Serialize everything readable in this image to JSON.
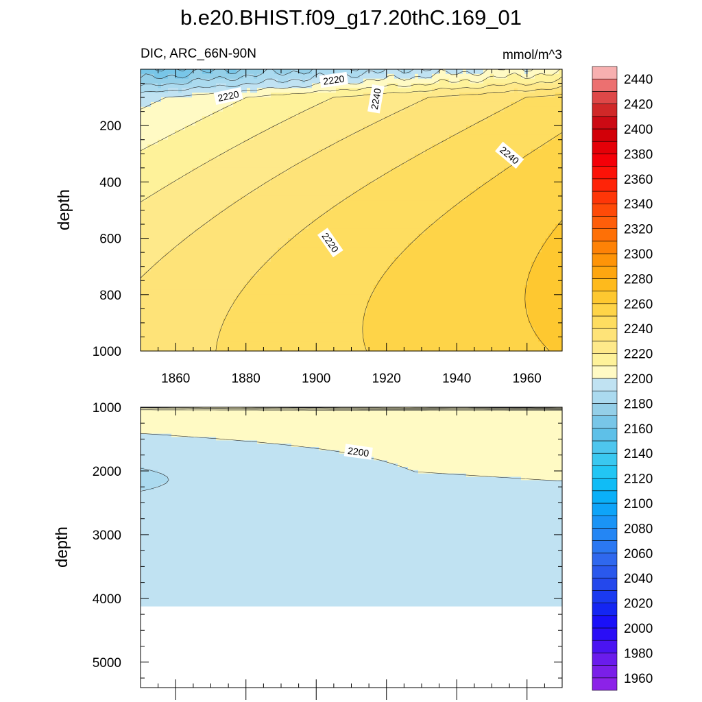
{
  "chart_data": {
    "type": "contour",
    "title": "b.e20.BHIST.f09_g17.20thC.169_01",
    "subtitle_left": "DIC, ARC_66N-90N",
    "subtitle_right": "mmol/m^3",
    "xlabel": "",
    "ylabel": "depth",
    "xlim": [
      1850,
      1970
    ],
    "x_ticks": [
      "1860",
      "1880",
      "1900",
      "1920",
      "1940",
      "1960"
    ],
    "colors": {
      "axis": "#000000",
      "contour_line": "#2a2a2a",
      "missing": "#ffffff"
    },
    "panels": [
      {
        "name": "upper",
        "ylim": [
          0,
          1000
        ],
        "y_ticks": [
          "200",
          "400",
          "600",
          "800",
          "1000"
        ],
        "y_tick_values": [
          200,
          400,
          600,
          800,
          1000
        ],
        "contour_labels": [
          {
            "text": "2220",
            "x": 1905,
            "y": 38,
            "angle": -8
          },
          {
            "text": "2220",
            "x": 1875,
            "y": 95,
            "angle": -12
          },
          {
            "text": "2240",
            "x": 1917,
            "y": 105,
            "angle": -80
          },
          {
            "text": "2240",
            "x": 1955,
            "y": 305,
            "angle": 40
          },
          {
            "text": "2220",
            "x": 1904,
            "y": 615,
            "angle": 55
          }
        ]
      },
      {
        "name": "lower",
        "ylim": [
          1000,
          5400
        ],
        "y_ticks": [
          "1000",
          "2000",
          "3000",
          "4000",
          "5000"
        ],
        "y_tick_values": [
          1000,
          2000,
          3000,
          4000,
          5000
        ],
        "bottom_data_depth": 4120,
        "contour_labels": [
          {
            "text": "2200",
            "x": 1912,
            "y": 1700,
            "angle": 8
          }
        ]
      }
    ],
    "colorbar": {
      "levels": [
        1950,
        1960,
        1970,
        1980,
        1990,
        2000,
        2010,
        2020,
        2030,
        2040,
        2050,
        2060,
        2070,
        2080,
        2090,
        2100,
        2110,
        2120,
        2130,
        2140,
        2150,
        2160,
        2170,
        2180,
        2190,
        2200,
        2210,
        2220,
        2230,
        2240,
        2250,
        2260,
        2270,
        2280,
        2290,
        2300,
        2310,
        2320,
        2330,
        2340,
        2350,
        2360,
        2370,
        2380,
        2390,
        2400,
        2410,
        2420,
        2430,
        2440,
        2450
      ],
      "colors": [
        "#8c22e8",
        "#7a1fe8",
        "#6a1cec",
        "#4a14f2",
        "#2a0ef6",
        "#1a10f8",
        "#1426f2",
        "#1a3af0",
        "#2448ec",
        "#2a58ec",
        "#2f68ee",
        "#2b78f2",
        "#2486f4",
        "#1a94f6",
        "#0ea4f8",
        "#0ab0f8",
        "#10bcf6",
        "#22c6f4",
        "#3ac8f0",
        "#4ec6ee",
        "#5ec0e8",
        "#78c6e8",
        "#94cfe8",
        "#abdaef",
        "#c0e2f2",
        "#fffac4",
        "#fef29a",
        "#fee98a",
        "#fee378",
        "#fedd60",
        "#fed448",
        "#fec830",
        "#feba1c",
        "#fea610",
        "#fe9408",
        "#fe8206",
        "#fe7006",
        "#fe5e0a",
        "#fe4a08",
        "#fe3608",
        "#fe2408",
        "#fc1208",
        "#f40008",
        "#e40008",
        "#d20008",
        "#cc0a14",
        "#d02828",
        "#de4848",
        "#ec7070",
        "#f7b0b0"
      ],
      "tick_labels": [
        "1960",
        "1980",
        "2000",
        "2020",
        "2040",
        "2060",
        "2080",
        "2100",
        "2120",
        "2140",
        "2160",
        "2180",
        "2200",
        "2220",
        "2240",
        "2260",
        "2280",
        "2300",
        "2320",
        "2340",
        "2360",
        "2380",
        "2400",
        "2420",
        "2440"
      ],
      "tick_values": [
        1960,
        1980,
        2000,
        2020,
        2040,
        2060,
        2080,
        2100,
        2120,
        2140,
        2160,
        2180,
        2200,
        2220,
        2240,
        2260,
        2280,
        2300,
        2320,
        2340,
        2360,
        2380,
        2400,
        2420,
        2440
      ]
    }
  }
}
